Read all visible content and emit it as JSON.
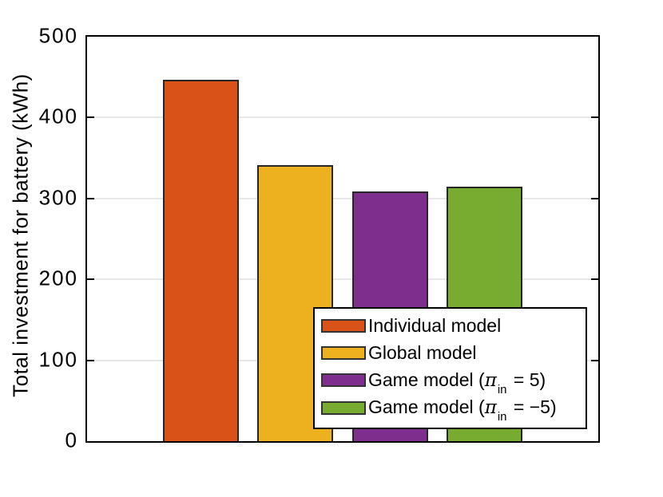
{
  "figure": {
    "background": "#ffffff",
    "axis_color": "#000000",
    "grid_color": "#e7e7e7",
    "bar_edge_color": "#262626"
  },
  "chart_data": {
    "type": "bar",
    "title": "",
    "xlabel": "",
    "ylabel": "Total investment for battery (kWh)",
    "categories": [
      "Individual model",
      "Global model",
      "Game model (pi_in = 5)",
      "Game model (pi_in = -5)"
    ],
    "values": [
      447,
      341,
      309,
      315
    ],
    "colors": [
      "#d95319",
      "#edb120",
      "#7e2f8e",
      "#77ac30"
    ],
    "ylim": [
      0,
      500
    ],
    "yticks": [
      0,
      100,
      200,
      300,
      400,
      500
    ],
    "x_positions": [
      1,
      2,
      3,
      4
    ],
    "xlim": [
      -0.2,
      5.2
    ],
    "bar_width": 0.8,
    "grid": "horizontal",
    "legend_position": "lower-right",
    "legend": [
      {
        "pre": "Individual model",
        "sym": "",
        "sub": "",
        "post": ""
      },
      {
        "pre": "Global model",
        "sym": "",
        "sub": "",
        "post": ""
      },
      {
        "pre": "Game model (",
        "sym": "π",
        "sub": "in",
        "post": " = 5)"
      },
      {
        "pre": "Game model (",
        "sym": "π",
        "sub": "in",
        "post": " = −5)"
      }
    ]
  }
}
